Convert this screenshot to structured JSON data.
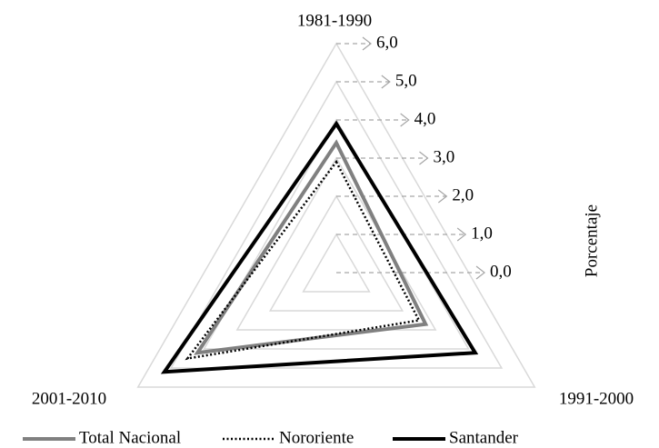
{
  "chart_data": {
    "type": "radar",
    "categories": [
      "1981-1990",
      "1991-2000",
      "2001-2010"
    ],
    "axis_label": "Porcentaje",
    "rlim": [
      0,
      6
    ],
    "rticks": [
      {
        "value": 0,
        "label": "0,0"
      },
      {
        "value": 1,
        "label": "1,0"
      },
      {
        "value": 2,
        "label": "2,0"
      },
      {
        "value": 3,
        "label": "3,0"
      },
      {
        "value": 4,
        "label": "4,0"
      },
      {
        "value": 5,
        "label": "5,0"
      },
      {
        "value": 6,
        "label": "6,0"
      }
    ],
    "grid": true,
    "legend": "bottom",
    "series": [
      {
        "name": "Total Nacional",
        "color": "#808080",
        "line_style": "solid",
        "values": [
          3.4,
          2.7,
          4.2
        ]
      },
      {
        "name": "Nororiente",
        "color": "#000000",
        "line_style": "dotted",
        "values": [
          2.9,
          2.5,
          4.5
        ]
      },
      {
        "name": "Santander",
        "color": "#000000",
        "line_style": "solid",
        "values": [
          3.9,
          4.2,
          5.2
        ]
      }
    ]
  }
}
